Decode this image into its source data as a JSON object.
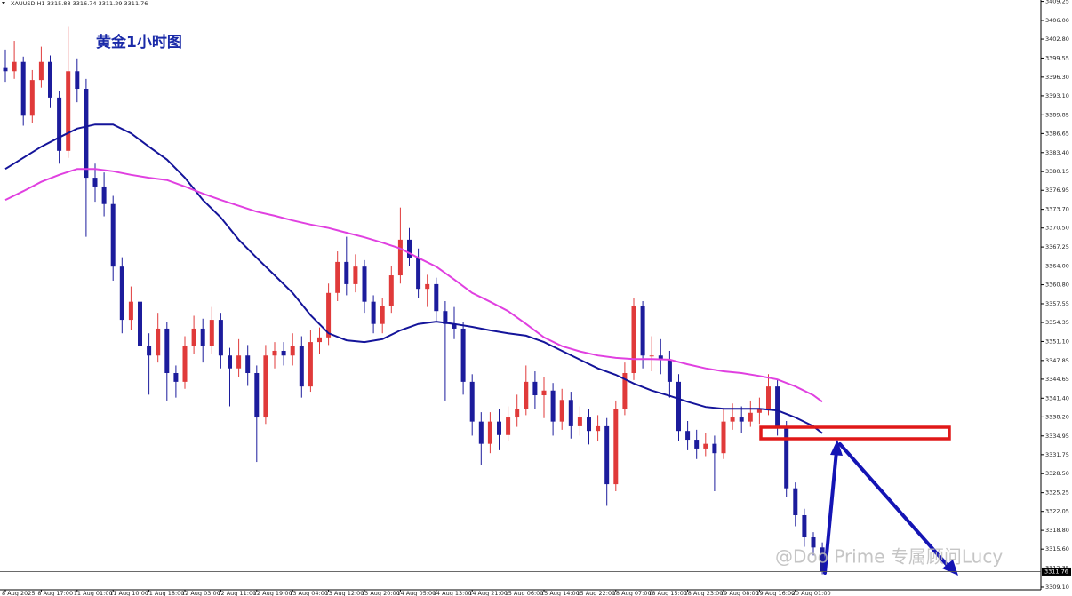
{
  "chart_data": {
    "type": "candlestick",
    "header": "XAUUSD,H1  3315.88 3316.74 3311.29 3311.76",
    "title": "黄金1小时图",
    "watermark": "@Doo Prime 专属顾问Lucy",
    "up_color": "#e03a3a",
    "down_color": "#1c1c9c",
    "ylim": [
      3308.64,
      3409.49
    ],
    "yticks": [
      {
        "value": 3409.25,
        "label": "3409.25"
      },
      {
        "value": 3406.0,
        "label": "3406.00"
      },
      {
        "value": 3402.8,
        "label": "3402.80"
      },
      {
        "value": 3399.55,
        "label": "3399.55"
      },
      {
        "value": 3396.3,
        "label": "3396.30"
      },
      {
        "value": 3393.1,
        "label": "3393.10"
      },
      {
        "value": 3389.85,
        "label": "3389.85"
      },
      {
        "value": 3386.65,
        "label": "3386.65"
      },
      {
        "value": 3383.4,
        "label": "3383.40"
      },
      {
        "value": 3380.15,
        "label": "3380.15"
      },
      {
        "value": 3376.95,
        "label": "3376.95"
      },
      {
        "value": 3373.7,
        "label": "3373.70"
      },
      {
        "value": 3370.5,
        "label": "3370.50"
      },
      {
        "value": 3367.25,
        "label": "3367.25"
      },
      {
        "value": 3364.0,
        "label": "3364.00"
      },
      {
        "value": 3360.8,
        "label": "3360.80"
      },
      {
        "value": 3357.55,
        "label": "3357.55"
      },
      {
        "value": 3354.35,
        "label": "3354.35"
      },
      {
        "value": 3351.1,
        "label": "3351.10"
      },
      {
        "value": 3347.85,
        "label": "3347.85"
      },
      {
        "value": 3344.65,
        "label": "3344.65"
      },
      {
        "value": 3341.4,
        "label": "3341.40"
      },
      {
        "value": 3338.2,
        "label": "3338.20"
      },
      {
        "value": 3334.95,
        "label": "3334.95"
      },
      {
        "value": 3331.75,
        "label": "3331.75"
      },
      {
        "value": 3328.5,
        "label": "3328.50"
      },
      {
        "value": 3325.25,
        "label": "3325.25"
      },
      {
        "value": 3322.05,
        "label": "3322.05"
      },
      {
        "value": 3318.8,
        "label": "3318.80"
      },
      {
        "value": 3315.6,
        "label": "3315.60"
      },
      {
        "value": 3312.35,
        "label": "3312.35"
      },
      {
        "value": 3309.1,
        "label": "3309.10"
      }
    ],
    "last_price": 3311.76,
    "categories": [
      "8 Aug 2025",
      null,
      null,
      null,
      "8 Aug 17:00",
      null,
      null,
      null,
      "11 Aug 01:00",
      null,
      null,
      null,
      "11 Aug 10:00",
      null,
      null,
      null,
      "11 Aug 18:00",
      null,
      null,
      null,
      "12 Aug 03:00",
      null,
      null,
      null,
      "12 Aug 11:00",
      null,
      null,
      null,
      "12 Aug 19:00",
      null,
      null,
      null,
      "13 Aug 04:00",
      null,
      null,
      null,
      "13 Aug 12:00",
      null,
      null,
      null,
      "13 Aug 20:00",
      null,
      null,
      null,
      "14 Aug 05:00",
      null,
      null,
      null,
      "14 Aug 13:00",
      null,
      null,
      null,
      "14 Aug 21:00",
      null,
      null,
      null,
      "15 Aug 06:00",
      null,
      null,
      null,
      "15 Aug 14:00",
      null,
      null,
      null,
      "15 Aug 22:00",
      null,
      null,
      null,
      "18 Aug 07:00",
      null,
      null,
      null,
      "18 Aug 15:00",
      null,
      null,
      null,
      "18 Aug 23:00",
      null,
      null,
      null,
      "19 Aug 08:00",
      null,
      null,
      null,
      "19 Aug 16:00",
      null,
      null,
      null,
      "20 Aug 01:00",
      null,
      null,
      null
    ],
    "open": [
      3398.0,
      3397.3,
      3398.9,
      3389.7,
      3395.8,
      3398.9,
      3392.8,
      3383.7,
      3397.3,
      3394.3,
      3379.1,
      3377.6,
      3374.6,
      3363.9,
      3354.8,
      3357.9,
      3350.3,
      3348.7,
      3353.3,
      3345.7,
      3344.2,
      3350.3,
      3353.3,
      3350.3,
      3354.8,
      3348.7,
      3346.5,
      3348.7,
      3345.7,
      3338.1,
      3348.7,
      3349.5,
      3348.7,
      3350.3,
      3343.4,
      3351.0,
      3351.8,
      3359.4,
      3364.7,
      3360.9,
      3363.9,
      3357.9,
      3354.1,
      3357.1,
      3362.4,
      3368.5,
      3365.4,
      3360.1,
      3360.9,
      3356.3,
      3354.1,
      3353.3,
      3344.2,
      3337.4,
      3333.6,
      3337.4,
      3335.1,
      3338.1,
      3339.6,
      3344.2,
      3341.9,
      3342.7,
      3337.4,
      3341.1,
      3336.6,
      3338.1,
      3335.8,
      3336.6,
      3326.7,
      3339.6,
      3345.7,
      3357.1,
      3348.7,
      3348.7,
      3348.0,
      3344.2,
      3335.8,
      3334.3,
      3332.8,
      3333.6,
      3332.0,
      3337.4,
      3338.1,
      3337.4,
      3338.9,
      3339.6,
      3343.4,
      3336.6,
      3326.0,
      3321.4,
      3317.6,
      3315.88
    ],
    "high": [
      3401.0,
      3402.5,
      3399.8,
      3397.5,
      3401.5,
      3400.0,
      3394.0,
      3405.0,
      3399.5,
      3396.0,
      3381.5,
      3380.0,
      3376.0,
      3365.5,
      3360.5,
      3359.0,
      3352.5,
      3356.0,
      3354.5,
      3347.0,
      3352.0,
      3355.5,
      3355.0,
      3357.0,
      3356.0,
      3350.0,
      3351.5,
      3350.5,
      3347.0,
      3350.5,
      3351.0,
      3351.0,
      3352.5,
      3352.0,
      3353.0,
      3353.5,
      3361.0,
      3366.5,
      3369.0,
      3366.0,
      3365.0,
      3359.0,
      3358.5,
      3364.0,
      3374.0,
      3370.5,
      3367.0,
      3362.5,
      3362.0,
      3358.0,
      3357.0,
      3354.5,
      3345.5,
      3339.0,
      3339.0,
      3339.5,
      3340.0,
      3342.0,
      3347.0,
      3346.0,
      3345.0,
      3344.0,
      3343.0,
      3342.5,
      3340.0,
      3339.5,
      3338.5,
      3338.0,
      3341.0,
      3347.5,
      3358.5,
      3358.0,
      3352.0,
      3351.5,
      3349.5,
      3345.5,
      3337.5,
      3336.0,
      3335.5,
      3335.0,
      3339.5,
      3340.5,
      3340.0,
      3341.0,
      3341.5,
      3345.5,
      3344.5,
      3337.5,
      3327.0,
      3322.5,
      3318.5,
      3316.74
    ],
    "low": [
      3395.5,
      3396.0,
      3388.0,
      3388.5,
      3394.5,
      3391.0,
      3381.5,
      3382.5,
      3392.0,
      3369.0,
      3375.0,
      3372.5,
      3361.5,
      3352.5,
      3353.0,
      3345.5,
      3342.0,
      3347.5,
      3341.0,
      3341.5,
      3343.0,
      3349.0,
      3347.5,
      3349.0,
      3346.5,
      3340.0,
      3345.0,
      3343.5,
      3330.5,
      3337.0,
      3346.5,
      3347.0,
      3347.0,
      3341.5,
      3342.5,
      3349.0,
      3350.5,
      3358.0,
      3359.0,
      3359.5,
      3356.0,
      3352.5,
      3352.5,
      3356.0,
      3361.0,
      3364.0,
      3358.5,
      3357.0,
      3354.5,
      3341.0,
      3351.5,
      3342.0,
      3335.0,
      3330.0,
      3332.0,
      3332.5,
      3334.0,
      3336.5,
      3338.5,
      3339.5,
      3338.0,
      3335.0,
      3336.0,
      3334.5,
      3335.0,
      3333.5,
      3334.0,
      3323.0,
      3325.5,
      3338.5,
      3344.5,
      3346.5,
      3346.0,
      3345.5,
      3341.5,
      3334.0,
      3332.5,
      3331.0,
      3331.5,
      3325.5,
      3331.0,
      3336.0,
      3335.5,
      3336.5,
      3337.0,
      3338.5,
      3335.0,
      3324.5,
      3319.5,
      3316.0,
      3314.5,
      3311.29
    ],
    "close": [
      3397.3,
      3398.9,
      3389.7,
      3395.8,
      3398.9,
      3392.8,
      3383.7,
      3397.3,
      3394.3,
      3379.1,
      3377.6,
      3374.6,
      3363.9,
      3354.8,
      3357.9,
      3350.3,
      3348.7,
      3353.3,
      3345.7,
      3344.2,
      3350.3,
      3353.3,
      3350.3,
      3354.8,
      3348.7,
      3346.5,
      3348.7,
      3345.7,
      3338.1,
      3348.7,
      3349.5,
      3348.7,
      3350.3,
      3343.4,
      3351.0,
      3351.8,
      3359.4,
      3364.7,
      3360.9,
      3363.9,
      3357.9,
      3354.1,
      3357.1,
      3362.4,
      3368.5,
      3365.4,
      3360.1,
      3360.9,
      3356.3,
      3354.1,
      3353.3,
      3344.2,
      3337.4,
      3333.6,
      3337.4,
      3335.1,
      3338.1,
      3339.6,
      3344.2,
      3341.9,
      3342.7,
      3337.4,
      3341.1,
      3336.6,
      3338.1,
      3335.8,
      3336.6,
      3326.7,
      3339.6,
      3345.7,
      3357.1,
      3348.7,
      3348.7,
      3348.0,
      3344.2,
      3335.8,
      3334.3,
      3332.8,
      3333.6,
      3332.0,
      3337.4,
      3338.1,
      3337.4,
      3338.9,
      3339.6,
      3343.4,
      3336.6,
      3326.0,
      3321.4,
      3317.6,
      3315.88,
      3311.76
    ],
    "overlays": [
      {
        "color": "#14149a",
        "x": [
          0,
          2,
          4,
          6,
          8,
          10,
          12,
          14,
          16,
          18,
          20,
          22,
          24,
          26,
          28,
          30,
          32,
          34,
          36,
          38,
          40,
          42,
          44,
          46,
          48,
          50,
          52,
          54,
          56,
          58,
          60,
          62,
          64,
          66,
          68,
          70,
          72,
          74,
          76,
          78,
          80,
          82,
          84,
          86,
          88,
          90,
          91
        ],
        "values": [
          3380.6,
          3382.5,
          3384.4,
          3386.0,
          3387.5,
          3388.2,
          3388.2,
          3386.7,
          3384.4,
          3382.2,
          3379.1,
          3375.3,
          3372.3,
          3368.5,
          3365.4,
          3362.4,
          3359.4,
          3355.6,
          3352.5,
          3351.3,
          3351.0,
          3351.5,
          3353.0,
          3354.1,
          3354.5,
          3354.1,
          3353.6,
          3353.0,
          3352.5,
          3352.1,
          3351.0,
          3349.5,
          3348.0,
          3346.5,
          3345.4,
          3343.9,
          3342.7,
          3341.8,
          3340.8,
          3339.9,
          3339.6,
          3339.6,
          3339.6,
          3339.3,
          3338.1,
          3336.6,
          3335.4
        ]
      },
      {
        "color": "#e040e0",
        "x": [
          0,
          2,
          4,
          6,
          8,
          10,
          12,
          14,
          16,
          18,
          20,
          22,
          24,
          26,
          28,
          30,
          32,
          34,
          36,
          38,
          40,
          42,
          44,
          46,
          48,
          50,
          52,
          54,
          56,
          58,
          60,
          62,
          64,
          66,
          68,
          70,
          72,
          74,
          76,
          78,
          80,
          82,
          84,
          86,
          88,
          90,
          91
        ],
        "values": [
          3375.3,
          3376.8,
          3378.4,
          3379.6,
          3380.6,
          3380.6,
          3380.2,
          3379.6,
          3379.1,
          3378.7,
          3377.6,
          3376.4,
          3375.3,
          3374.3,
          3373.3,
          3372.6,
          3371.8,
          3371.1,
          3370.5,
          3369.7,
          3368.9,
          3368.0,
          3367.0,
          3365.4,
          3363.9,
          3361.7,
          3359.4,
          3357.9,
          3356.3,
          3354.1,
          3351.8,
          3350.3,
          3349.4,
          3348.7,
          3348.3,
          3348.1,
          3348.1,
          3348.0,
          3347.2,
          3346.5,
          3346.0,
          3345.7,
          3345.2,
          3344.6,
          3343.4,
          3341.9,
          3340.8
        ]
      }
    ]
  }
}
